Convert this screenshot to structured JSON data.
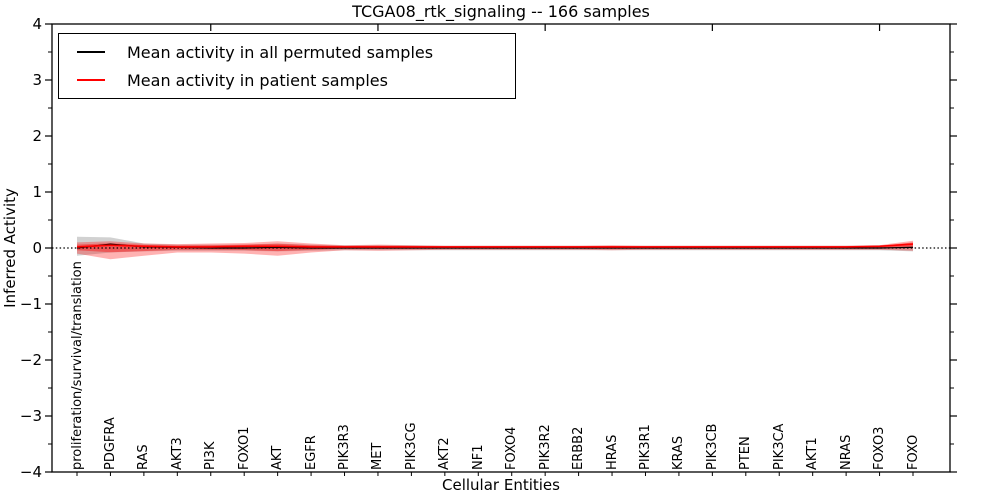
{
  "figure": {
    "title": "TCGA08_rtk_signaling -- 166 samples",
    "xlabel": "Cellular Entities",
    "ylabel": "Inferred Activity"
  },
  "legend": {
    "position": "upper left",
    "items": [
      {
        "label": "Mean activity in all permuted samples",
        "color": "#000000"
      },
      {
        "label": "Mean activity in patient samples",
        "color": "#ff0000"
      }
    ]
  },
  "chart_data": {
    "type": "line",
    "title": "TCGA08_rtk_signaling -- 166 samples",
    "xlabel": "Cellular Entities",
    "ylabel": "Inferred Activity",
    "ylim": [
      -4,
      4
    ],
    "grid": false,
    "legend_position": "upper left",
    "y_ticks": [
      4,
      3,
      2,
      1,
      0,
      -1,
      -2,
      -3,
      -4
    ],
    "y_tick_labels": [
      "4",
      "3",
      "2",
      "1",
      "0",
      "−1",
      "−2",
      "−3",
      "−4"
    ],
    "y_minor_tick_step": 0.5,
    "top_axis_ticks": [
      5,
      10,
      15,
      20,
      25
    ],
    "zero_line": {
      "y": 0,
      "style": "dotted",
      "color": "#000000"
    },
    "categories": [
      "proliferation/survival/translation",
      "PDGFRA",
      "RAS",
      "AKT3",
      "PI3K",
      "FOXO1",
      "AKT",
      "EGFR",
      "PIK3R3",
      "MET",
      "PIK3CG",
      "AKT2",
      "NF1",
      "FOXO4",
      "PIK3R2",
      "ERBB2",
      "HRAS",
      "PIK3R1",
      "KRAS",
      "PIK3CB",
      "PTEN",
      "PIK3CA",
      "AKT1",
      "NRAS",
      "FOXO3",
      "FOXO"
    ],
    "series": [
      {
        "name": "Mean activity in all permuted samples",
        "color": "#000000",
        "values": [
          0.0,
          0.07,
          0.02,
          0.01,
          0.0,
          0.0,
          0.01,
          0.0,
          0.0,
          0.0,
          0.0,
          0.0,
          0.0,
          0.0,
          0.0,
          0.0,
          0.0,
          0.0,
          0.0,
          0.0,
          0.0,
          0.0,
          0.0,
          0.0,
          0.0,
          0.01
        ]
      },
      {
        "name": "Mean activity in patient samples",
        "color": "#ff0000",
        "values": [
          0.02,
          0.05,
          0.03,
          0.02,
          0.02,
          0.03,
          0.03,
          0.02,
          0.02,
          0.02,
          0.02,
          0.02,
          0.02,
          0.02,
          0.02,
          0.02,
          0.02,
          0.02,
          0.02,
          0.02,
          0.02,
          0.02,
          0.02,
          0.02,
          0.03,
          0.07
        ]
      }
    ],
    "bands": [
      {
        "name": "permuted-samples-range",
        "color": "#999999",
        "opacity": 0.45,
        "upper": [
          0.2,
          0.19,
          0.08,
          0.06,
          0.06,
          0.06,
          0.08,
          0.06,
          0.05,
          0.05,
          0.05,
          0.04,
          0.04,
          0.04,
          0.04,
          0.04,
          0.04,
          0.04,
          0.04,
          0.04,
          0.04,
          0.04,
          0.04,
          0.04,
          0.05,
          0.06
        ],
        "lower": [
          -0.14,
          -0.08,
          -0.06,
          -0.05,
          -0.05,
          -0.05,
          -0.06,
          -0.05,
          -0.04,
          -0.04,
          -0.04,
          -0.04,
          -0.04,
          -0.04,
          -0.04,
          -0.04,
          -0.04,
          -0.04,
          -0.04,
          -0.04,
          -0.04,
          -0.04,
          -0.04,
          -0.04,
          -0.04,
          -0.06
        ]
      },
      {
        "name": "patient-samples-range",
        "color": "#ff0000",
        "opacity": 0.3,
        "upper": [
          0.1,
          0.12,
          0.08,
          0.07,
          0.08,
          0.09,
          0.12,
          0.08,
          0.05,
          0.06,
          0.05,
          0.04,
          0.04,
          0.04,
          0.04,
          0.04,
          0.05,
          0.04,
          0.04,
          0.04,
          0.04,
          0.04,
          0.04,
          0.04,
          0.05,
          0.13
        ],
        "lower": [
          -0.1,
          -0.2,
          -0.14,
          -0.08,
          -0.08,
          -0.1,
          -0.14,
          -0.08,
          -0.04,
          -0.05,
          -0.04,
          -0.03,
          -0.03,
          -0.03,
          -0.03,
          -0.03,
          -0.04,
          -0.03,
          -0.03,
          -0.03,
          -0.03,
          -0.03,
          -0.03,
          -0.03,
          -0.03,
          -0.05
        ]
      }
    ]
  }
}
